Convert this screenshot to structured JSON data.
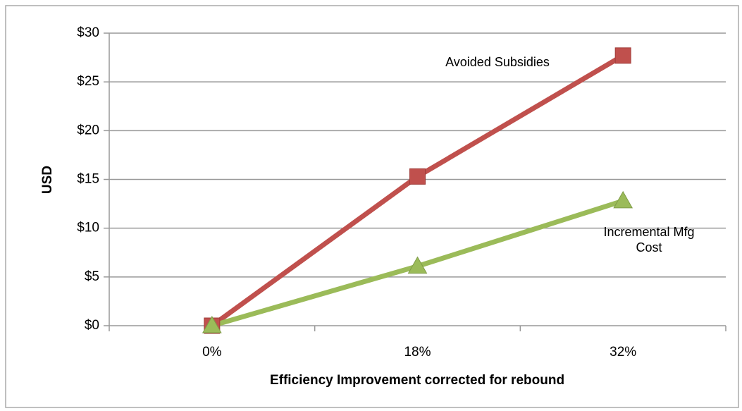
{
  "chart_data": {
    "type": "line",
    "x_label": "Efficiency Improvement corrected for rebound",
    "y_label": "USD",
    "categories": [
      "0%",
      "18%",
      "32%"
    ],
    "series": [
      {
        "name": "Avoided Subsidies",
        "color": "#c0504d",
        "marker": "square",
        "values": [
          0,
          15.3,
          27.7
        ]
      },
      {
        "name": "Incremental Mfg Cost",
        "color": "#9bbb59",
        "marker": "triangle",
        "values": [
          0,
          6.1,
          12.8
        ]
      }
    ],
    "ylim": [
      0,
      30
    ],
    "yticks": [
      {
        "value": 0,
        "label": "$0"
      },
      {
        "value": 5,
        "label": "$5"
      },
      {
        "value": 10,
        "label": "$10"
      },
      {
        "value": 15,
        "label": "$15"
      },
      {
        "value": 20,
        "label": "$20"
      },
      {
        "value": 25,
        "label": "$25"
      },
      {
        "value": 30,
        "label": "$30"
      }
    ],
    "grid": true
  }
}
